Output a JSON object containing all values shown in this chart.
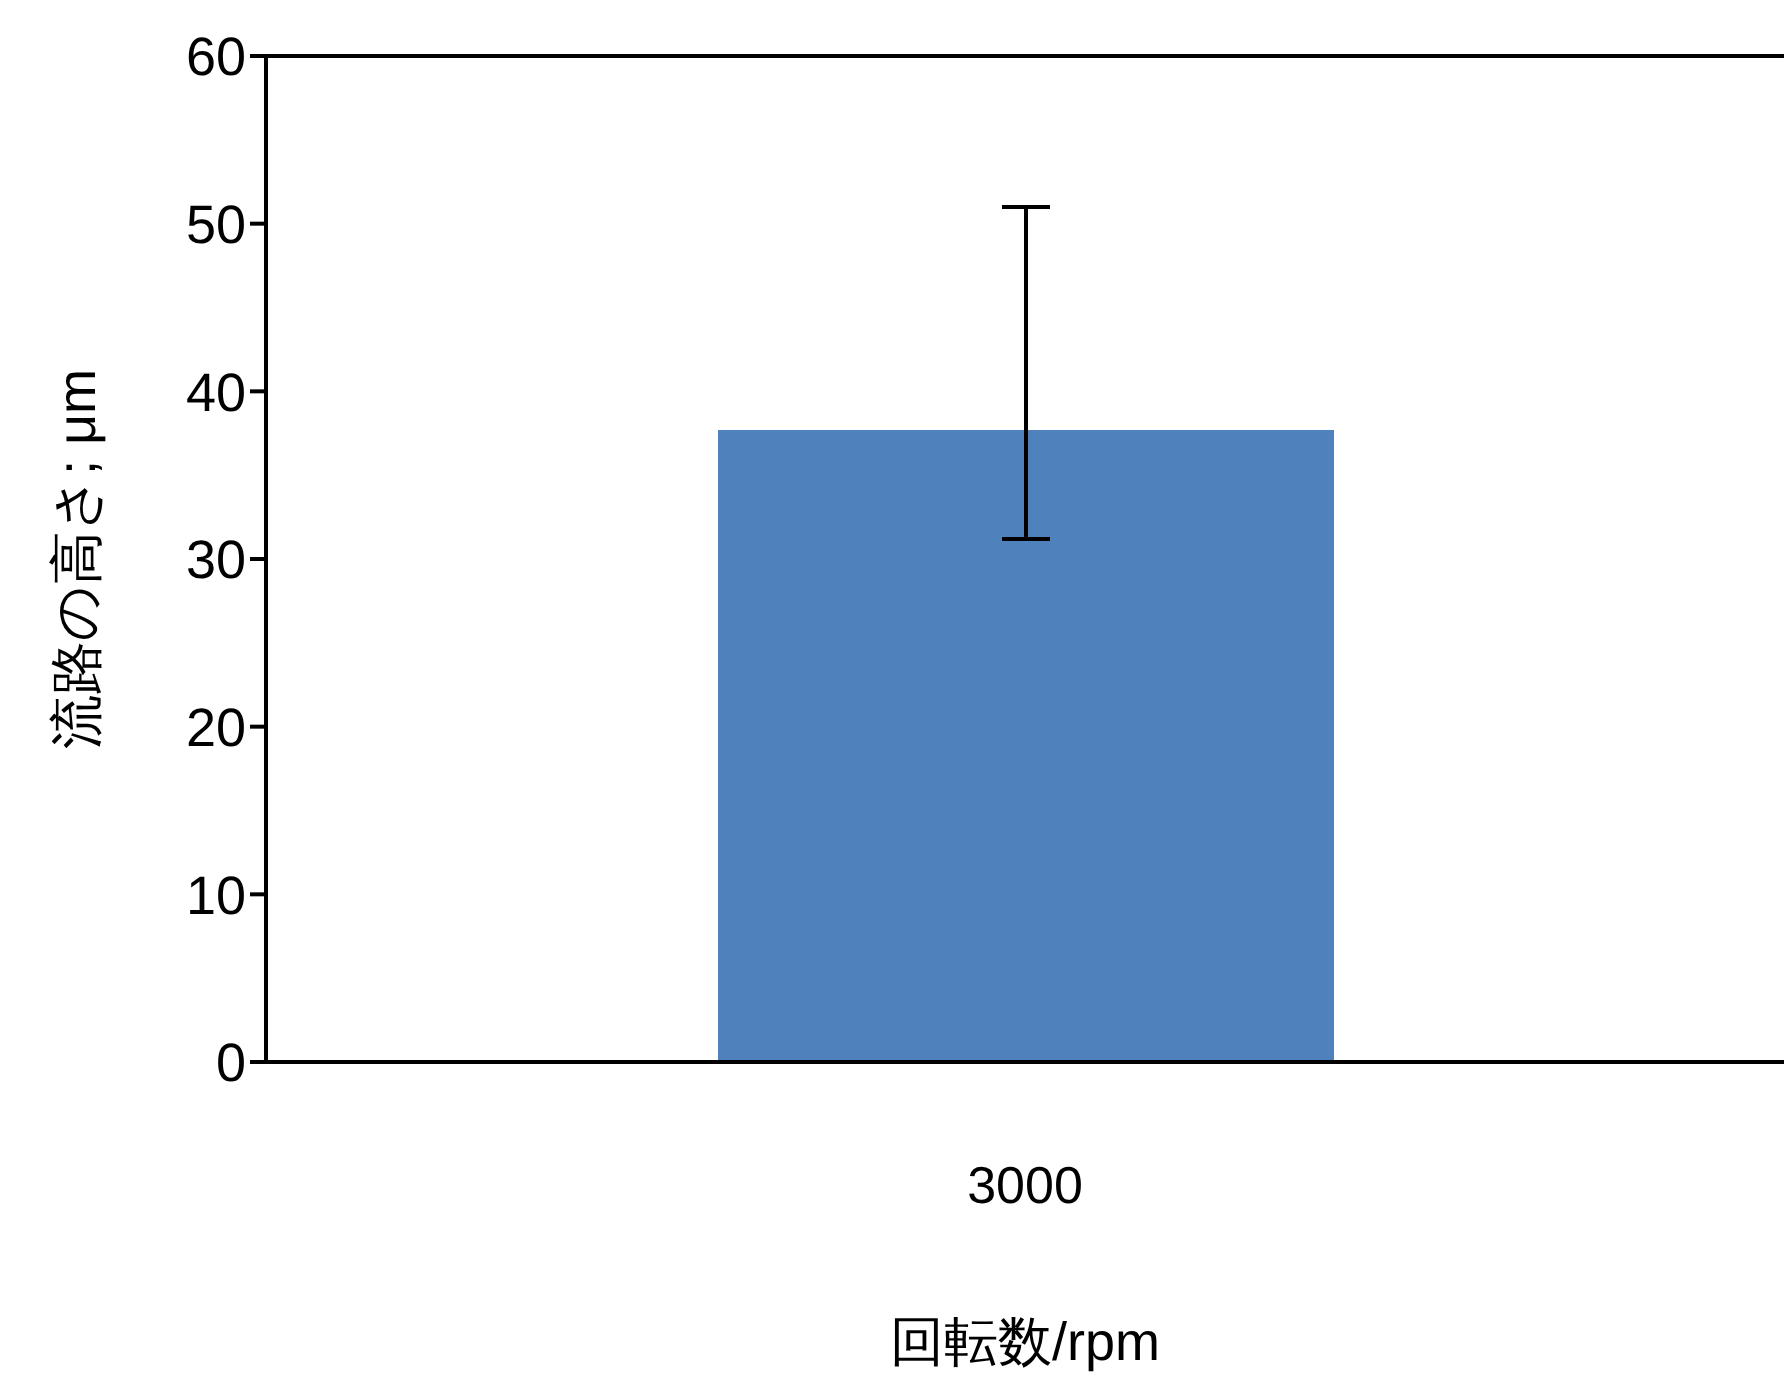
{
  "chart_data": {
    "type": "bar",
    "xlabel": "回転数/rpm",
    "ylabel": "流路の高さ; μm",
    "categories": [
      "3000"
    ],
    "values": [
      37.7
    ],
    "color": "#4f81bd",
    "errors": [
      [
        31.2,
        51
      ]
    ],
    "ylim": [
      0,
      60
    ],
    "yticks": [
      0,
      10,
      20,
      30,
      40,
      50,
      60
    ],
    "grid": false,
    "legend": false
  }
}
